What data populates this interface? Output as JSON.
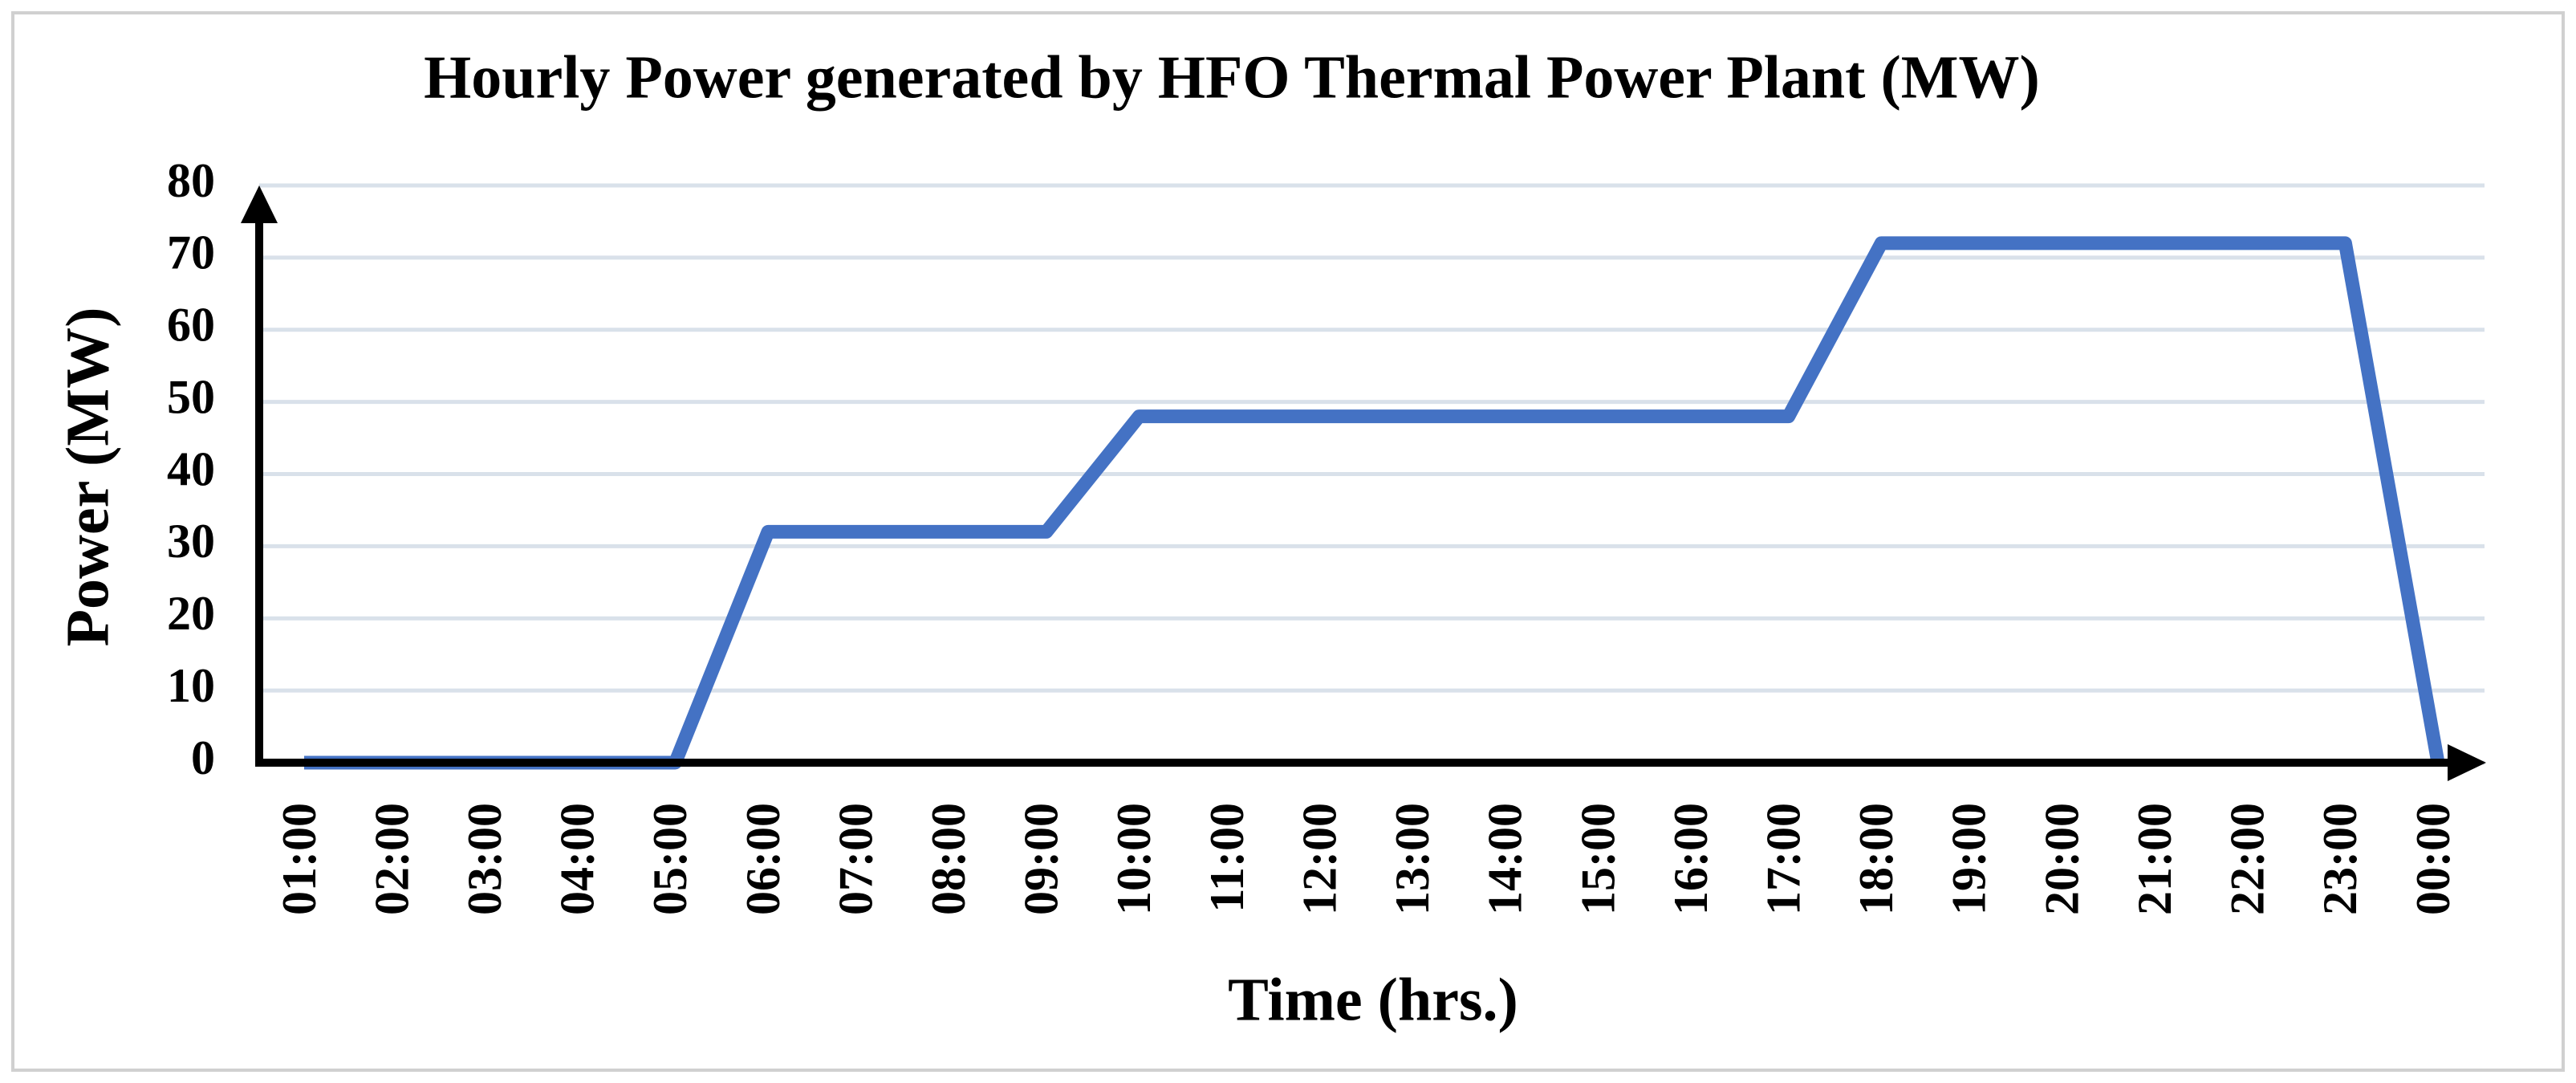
{
  "chart_data": {
    "type": "line",
    "title": "Hourly Power generated by HFO Thermal Power Plant (MW)",
    "x_label": "Time (hrs.)",
    "y_label": "Power (MW)",
    "categories": [
      "01:00",
      "02:00",
      "03:00",
      "04:00",
      "05:00",
      "06:00",
      "07:00",
      "08:00",
      "09:00",
      "10:00",
      "11:00",
      "12:00",
      "13:00",
      "14:00",
      "15:00",
      "16:00",
      "17:00",
      "18:00",
      "19:00",
      "20:00",
      "21:00",
      "22:00",
      "23:00",
      "00:00"
    ],
    "series": [
      {
        "color": "#4472c4",
        "values": [
          0,
          0,
          0,
          0,
          0,
          32,
          32,
          32,
          32,
          48,
          48,
          48,
          48,
          48,
          48,
          48,
          48,
          72,
          72,
          72,
          72,
          72,
          72,
          0
        ]
      }
    ],
    "ylim": [
      0,
      80
    ],
    "yticks": [
      0,
      10,
      20,
      30,
      40,
      50,
      60,
      70,
      80
    ],
    "grid": true
  }
}
